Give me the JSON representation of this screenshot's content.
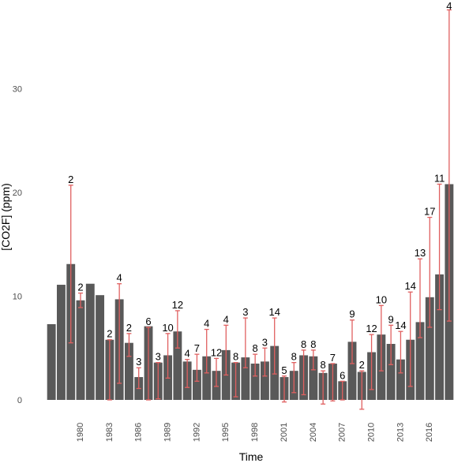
{
  "chart_data": {
    "type": "bar",
    "xlabel": "Time",
    "ylabel": "[CO2F] (ppm)",
    "ylim": [
      0,
      37.5
    ],
    "grid": false,
    "bar_color": "#595959",
    "error_color": "#e06060",
    "x_ticks": [
      "1980",
      "1983",
      "1986",
      "1989",
      "1992",
      "1995",
      "1998",
      "2001",
      "2004",
      "2007",
      "2010",
      "2013",
      "2016"
    ],
    "y_ticks": [
      "0",
      "10",
      "20",
      "30"
    ],
    "y_tick_values": [
      0,
      10,
      20,
      30
    ],
    "years": [
      1977,
      1978,
      1979,
      1980,
      1981,
      1982,
      1983,
      1984,
      1985,
      1986,
      1987,
      1988,
      1989,
      1990,
      1991,
      1992,
      1993,
      1994,
      1995,
      1996,
      1997,
      1998,
      1999,
      2000,
      2001,
      2002,
      2003,
      2004,
      2005,
      2006,
      2007,
      2008,
      2009,
      2010,
      2011,
      2012,
      2013,
      2014,
      2015,
      2016,
      2017,
      2018
    ],
    "values": [
      7.3,
      11.1,
      13.1,
      9.6,
      11.2,
      10.1,
      5.8,
      9.7,
      5.5,
      2.2,
      7.1,
      3.6,
      4.3,
      6.6,
      3.7,
      2.9,
      4.2,
      2.8,
      4.8,
      3.6,
      4.1,
      3.5,
      3.7,
      5.2,
      2.2,
      2.8,
      4.3,
      4.2,
      2.6,
      3.5,
      1.8,
      5.6,
      2.7,
      4.6,
      6.3,
      5.4,
      3.9,
      5.8,
      7.5,
      9.9,
      12.1,
      20.8
    ],
    "errors_low": [
      null,
      null,
      5.5,
      8.9,
      null,
      null,
      0.0,
      1.6,
      4.2,
      1.1,
      0.0,
      0.1,
      2.1,
      5.0,
      1.2,
      1.8,
      2.6,
      1.3,
      2.4,
      0.3,
      3.1,
      2.3,
      2.3,
      2.5,
      -0.2,
      0.7,
      0.5,
      2.9,
      -0.4,
      -0.1,
      0.0,
      3.5,
      -0.9,
      1.0,
      2.8,
      3.4,
      2.6,
      1.3,
      6.0,
      7.0,
      8.7,
      7.6
    ],
    "errors_high": [
      null,
      null,
      20.7,
      10.3,
      null,
      null,
      5.8,
      11.2,
      6.4,
      3.1,
      7.0,
      3.6,
      6.4,
      8.6,
      3.9,
      4.4,
      6.8,
      4.0,
      7.2,
      3.6,
      7.9,
      4.4,
      5.0,
      7.9,
      2.3,
      3.6,
      4.8,
      4.8,
      2.8,
      3.5,
      1.8,
      7.7,
      2.8,
      6.3,
      9.1,
      7.2,
      6.6,
      10.4,
      13.6,
      17.6,
      20.8,
      37.6
    ],
    "counts": [
      null,
      null,
      "2",
      "2",
      null,
      null,
      "2",
      "4",
      "2",
      "3",
      "6",
      "3",
      "10",
      "12",
      "4",
      "7",
      "4",
      "12",
      "4",
      "8",
      "3",
      "8",
      "3",
      "14",
      "5",
      "8",
      "8",
      "8",
      "8",
      "7",
      "6",
      "9",
      "2",
      "12",
      "10",
      "9",
      "14",
      "14",
      "13",
      "17",
      "11",
      "4"
    ]
  }
}
